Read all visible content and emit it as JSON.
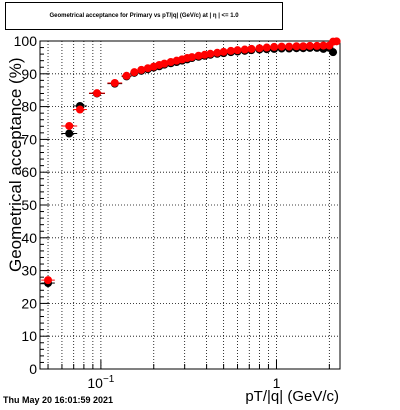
{
  "chart_data": {
    "type": "scatter",
    "title": "Geometrical acceptance for Primary vs pT/|q| (GeV/c)  at  | η | <= 1.0",
    "xlabel": "pT/|q| (GeV/c)",
    "ylabel": "Geometrical acceptance (%)",
    "x_scale": "log",
    "xlim": [
      0.045,
      2.3
    ],
    "ylim": [
      0,
      100
    ],
    "x_tick_labels": [
      "10^-1",
      "1"
    ],
    "y_ticks": [
      0,
      10,
      20,
      30,
      40,
      50,
      60,
      70,
      80,
      90,
      100
    ],
    "grid": true,
    "series": [
      {
        "color": "#000000",
        "points": [
          [
            0.05,
            26.2
          ],
          [
            0.066,
            71.8
          ],
          [
            0.076,
            80.2
          ],
          [
            0.095,
            84.0
          ],
          [
            0.12,
            87.0
          ],
          [
            0.14,
            89.2
          ],
          [
            0.155,
            90.3
          ],
          [
            0.17,
            90.9
          ],
          [
            0.185,
            91.4
          ],
          [
            0.2,
            91.9
          ],
          [
            0.215,
            92.3
          ],
          [
            0.23,
            92.8
          ],
          [
            0.25,
            93.2
          ],
          [
            0.27,
            93.6
          ],
          [
            0.29,
            94.0
          ],
          [
            0.31,
            94.4
          ],
          [
            0.33,
            94.8
          ],
          [
            0.36,
            95.2
          ],
          [
            0.39,
            95.5
          ],
          [
            0.42,
            95.8
          ],
          [
            0.46,
            96.1
          ],
          [
            0.5,
            96.3
          ],
          [
            0.55,
            96.6
          ],
          [
            0.6,
            96.8
          ],
          [
            0.66,
            97.0
          ],
          [
            0.72,
            97.2
          ],
          [
            0.8,
            97.4
          ],
          [
            0.88,
            97.5
          ],
          [
            0.97,
            97.6
          ],
          [
            1.07,
            97.7
          ],
          [
            1.18,
            97.7
          ],
          [
            1.3,
            97.8
          ],
          [
            1.42,
            97.8
          ],
          [
            1.55,
            97.9
          ],
          [
            1.7,
            97.9
          ],
          [
            1.85,
            97.6
          ],
          [
            2.0,
            97.9
          ],
          [
            2.1,
            96.6
          ]
        ]
      },
      {
        "color": "#ff0000",
        "points": [
          [
            0.05,
            27.1
          ],
          [
            0.066,
            74.1
          ],
          [
            0.076,
            79.1
          ],
          [
            0.095,
            84.1
          ],
          [
            0.12,
            87.2
          ],
          [
            0.14,
            89.4
          ],
          [
            0.155,
            90.5
          ],
          [
            0.17,
            91.2
          ],
          [
            0.185,
            91.7
          ],
          [
            0.2,
            92.2
          ],
          [
            0.215,
            92.7
          ],
          [
            0.23,
            93.1
          ],
          [
            0.25,
            93.6
          ],
          [
            0.27,
            94.0
          ],
          [
            0.29,
            94.4
          ],
          [
            0.31,
            94.8
          ],
          [
            0.33,
            95.1
          ],
          [
            0.36,
            95.5
          ],
          [
            0.39,
            95.8
          ],
          [
            0.42,
            96.1
          ],
          [
            0.46,
            96.4
          ],
          [
            0.5,
            96.7
          ],
          [
            0.55,
            97.0
          ],
          [
            0.6,
            97.2
          ],
          [
            0.66,
            97.4
          ],
          [
            0.72,
            97.6
          ],
          [
            0.8,
            97.8
          ],
          [
            0.88,
            98.0
          ],
          [
            0.97,
            98.2
          ],
          [
            1.07,
            98.3
          ],
          [
            1.18,
            98.3
          ],
          [
            1.3,
            98.4
          ],
          [
            1.42,
            98.4
          ],
          [
            1.55,
            98.5
          ],
          [
            1.7,
            98.5
          ],
          [
            1.85,
            98.6
          ],
          [
            2.0,
            98.6
          ],
          [
            2.1,
            99.8
          ],
          [
            2.2,
            99.9
          ]
        ]
      }
    ]
  },
  "footer": {
    "timestamp": "Thu May 20 16:01:59 2021"
  }
}
